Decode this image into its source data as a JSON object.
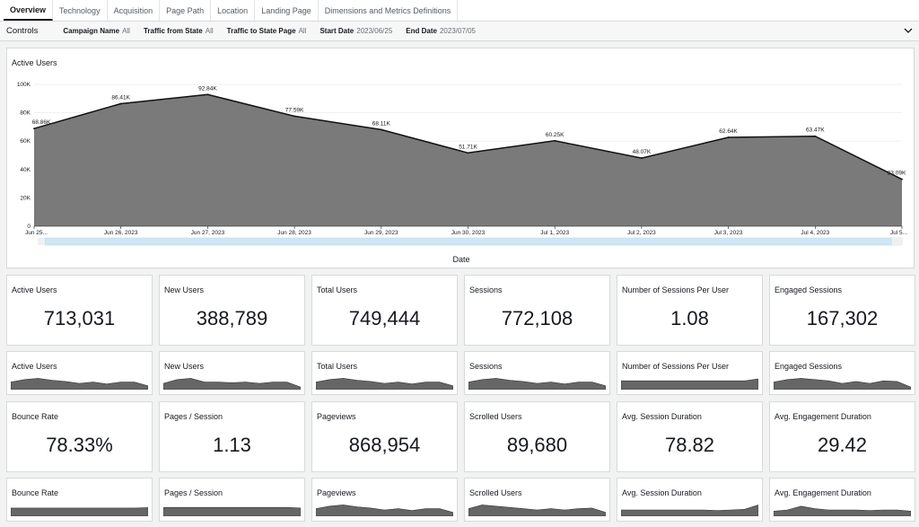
{
  "tabs": [
    {
      "label": "Overview",
      "active": true
    },
    {
      "label": "Technology",
      "active": false
    },
    {
      "label": "Acquisition",
      "active": false
    },
    {
      "label": "Page Path",
      "active": false
    },
    {
      "label": "Location",
      "active": false
    },
    {
      "label": "Landing Page",
      "active": false
    },
    {
      "label": "Dimensions and Metrics Definitions",
      "active": false
    }
  ],
  "controls": {
    "title": "Controls",
    "items": [
      {
        "label": "Campaign Name",
        "value": "All"
      },
      {
        "label": "Traffic from State",
        "value": "All"
      },
      {
        "label": "Traffic to State Page",
        "value": "All"
      },
      {
        "label": "Start Date",
        "value": "2023/06/25"
      },
      {
        "label": "End Date",
        "value": "2023/07/05"
      }
    ],
    "expand_icon": "chevron-down-icon"
  },
  "colors": {
    "area_fill": "#7a7a7a",
    "line": "#111111",
    "scrollbar": "#cfe6f5",
    "sparkline": "#666666"
  },
  "chart_data": {
    "type": "area",
    "title": "Active Users",
    "xlabel": "Date",
    "ylabel": "",
    "x": [
      "Jun 25...",
      "Jun 26, 2023",
      "Jun 27, 2023",
      "Jun 28, 2023",
      "Jun 29, 2023",
      "Jun 30, 2023",
      "Jul 1, 2023",
      "Jul 2, 2023",
      "Jul 3, 2023",
      "Jul 4, 2023",
      "Jul 5..."
    ],
    "values": [
      68860,
      86410,
      92840,
      77590,
      68110,
      51710,
      60250,
      48070,
      62640,
      63470,
      33090
    ],
    "data_labels": [
      "68.86K",
      "86.41K",
      "92.84K",
      "77.59K",
      "68.11K",
      "51.71K",
      "60.25K",
      "48.07K",
      "62.64K",
      "63.47K",
      "33.09K"
    ],
    "y_ticks": [
      "0",
      "20K",
      "40K",
      "60K",
      "80K",
      "100K"
    ],
    "ylim": [
      0,
      100000
    ],
    "grid": true,
    "legend": "none"
  },
  "kpis": [
    {
      "title": "Active Users",
      "value": "713,031"
    },
    {
      "title": "New Users",
      "value": "388,789"
    },
    {
      "title": "Total Users",
      "value": "749,444"
    },
    {
      "title": "Sessions",
      "value": "772,108"
    },
    {
      "title": "Number of Sessions Per User",
      "value": "1.08"
    },
    {
      "title": "Engaged Sessions",
      "value": "167,302"
    }
  ],
  "sparks1": [
    {
      "title": "Active Users",
      "values": [
        6,
        8,
        9,
        7.5,
        6.5,
        5,
        6,
        4.5,
        6,
        6,
        3
      ]
    },
    {
      "title": "New Users",
      "values": [
        5,
        8,
        9,
        6,
        6,
        5.5,
        6,
        5,
        6,
        6,
        2
      ]
    },
    {
      "title": "Total Users",
      "values": [
        6,
        8,
        9,
        7.5,
        6.5,
        5,
        6,
        4.5,
        6,
        6,
        3
      ]
    },
    {
      "title": "Sessions",
      "values": [
        6,
        8,
        9,
        7.5,
        6.5,
        5,
        6,
        4.5,
        6,
        6,
        3
      ]
    },
    {
      "title": "Number of Sessions Per User",
      "values": [
        7,
        7,
        7,
        7,
        7,
        7,
        7,
        7,
        7,
        7,
        8.5
      ]
    },
    {
      "title": "Engaged Sessions",
      "values": [
        6,
        8,
        9,
        8,
        7,
        5,
        6.5,
        5,
        7,
        6.5,
        2
      ]
    }
  ],
  "kpis2": [
    {
      "title": "Bounce Rate",
      "value": "78.33%"
    },
    {
      "title": "Pages / Session",
      "value": "1.13"
    },
    {
      "title": "Pageviews",
      "value": "868,954"
    },
    {
      "title": "Scrolled Users",
      "value": "89,680"
    },
    {
      "title": "Avg. Session Duration",
      "value": "78.82"
    },
    {
      "title": "Avg. Engagement Duration",
      "value": "29.42"
    }
  ],
  "sparks2": [
    {
      "title": "Bounce Rate",
      "values": [
        6.5,
        6.5,
        6.5,
        6.5,
        6.5,
        6.5,
        6.5,
        6.5,
        6.5,
        6.5,
        6.8
      ]
    },
    {
      "title": "Pages / Session",
      "values": [
        7,
        7,
        7,
        7,
        7,
        7,
        7,
        7,
        7,
        7,
        6.5
      ]
    },
    {
      "title": "Pageviews",
      "values": [
        6,
        8,
        9,
        7.5,
        6.5,
        5,
        6,
        4.5,
        6,
        6,
        3
      ]
    },
    {
      "title": "Scrolled Users",
      "values": [
        6,
        9,
        8,
        7,
        6,
        5,
        6,
        5,
        6,
        6.5,
        3
      ]
    },
    {
      "title": "Avg. Session Duration",
      "values": [
        5,
        5,
        5,
        5,
        5,
        5,
        5,
        4.5,
        5,
        5.5,
        9
      ]
    },
    {
      "title": "Avg. Engagement Duration",
      "values": [
        4,
        5,
        8,
        6,
        5,
        5,
        5,
        4.5,
        5,
        5,
        4
      ]
    }
  ]
}
